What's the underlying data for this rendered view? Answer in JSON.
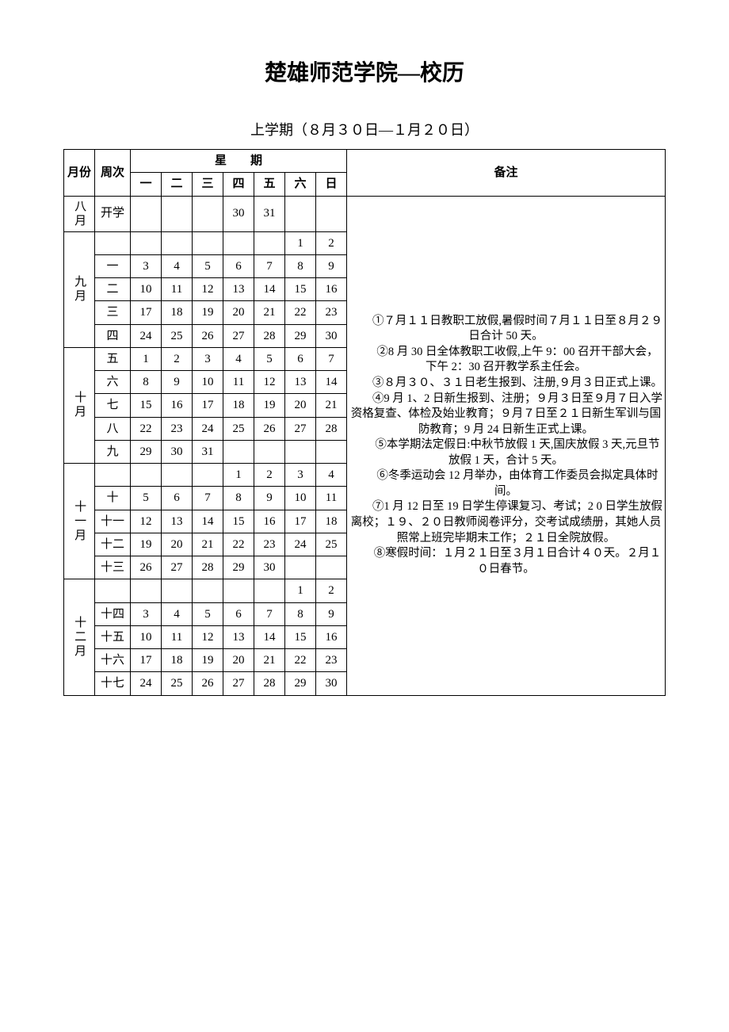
{
  "title": "楚雄师范学院—校历",
  "subtitle": "上学期（８月３０日—１月２０日）",
  "headers": {
    "month": "月份",
    "week": "周次",
    "weekday_group": "星　　期",
    "notes": "备注",
    "days": [
      "一",
      "二",
      "三",
      "四",
      "五",
      "六",
      "日"
    ]
  },
  "months": [
    {
      "label": "八月",
      "rows": [
        {
          "week": "开学",
          "d": [
            "",
            "",
            "",
            "30",
            "31",
            "",
            ""
          ]
        }
      ]
    },
    {
      "label": "九月",
      "rows": [
        {
          "week": "",
          "d": [
            "",
            "",
            "",
            "",
            "",
            "1",
            "2"
          ]
        },
        {
          "week": "一",
          "d": [
            "3",
            "4",
            "5",
            "6",
            "7",
            "8",
            "9"
          ]
        },
        {
          "week": "二",
          "d": [
            "10",
            "11",
            "12",
            "13",
            "14",
            "15",
            "16"
          ]
        },
        {
          "week": "三",
          "d": [
            "17",
            "18",
            "19",
            "20",
            "21",
            "22",
            "23"
          ]
        },
        {
          "week": "四",
          "d": [
            "24",
            "25",
            "26",
            "27",
            "28",
            "29",
            "30"
          ]
        }
      ]
    },
    {
      "label": "十月",
      "rows": [
        {
          "week": "五",
          "d": [
            "1",
            "2",
            "3",
            "4",
            "5",
            "6",
            "7"
          ]
        },
        {
          "week": "六",
          "d": [
            "8",
            "9",
            "10",
            "11",
            "12",
            "13",
            "14"
          ]
        },
        {
          "week": "七",
          "d": [
            "15",
            "16",
            "17",
            "18",
            "19",
            "20",
            "21"
          ]
        },
        {
          "week": "八",
          "d": [
            "22",
            "23",
            "24",
            "25",
            "26",
            "27",
            "28"
          ]
        },
        {
          "week": "九",
          "d": [
            "29",
            "30",
            "31",
            "",
            "",
            "",
            ""
          ]
        }
      ]
    },
    {
      "label": "十一月",
      "rows": [
        {
          "week": "",
          "d": [
            "",
            "",
            "",
            "1",
            "2",
            "3",
            "4"
          ]
        },
        {
          "week": "十",
          "d": [
            "5",
            "6",
            "7",
            "8",
            "9",
            "10",
            "11"
          ]
        },
        {
          "week": "十一",
          "d": [
            "12",
            "13",
            "14",
            "15",
            "16",
            "17",
            "18"
          ]
        },
        {
          "week": "十二",
          "d": [
            "19",
            "20",
            "21",
            "22",
            "23",
            "24",
            "25"
          ]
        },
        {
          "week": "十三",
          "d": [
            "26",
            "27",
            "28",
            "29",
            "30",
            "",
            ""
          ]
        }
      ]
    },
    {
      "label": "十二月",
      "rows": [
        {
          "week": "",
          "d": [
            "",
            "",
            "",
            "",
            "",
            "1",
            "2"
          ]
        },
        {
          "week": "十四",
          "d": [
            "3",
            "4",
            "5",
            "6",
            "7",
            "8",
            "9"
          ]
        },
        {
          "week": "十五",
          "d": [
            "10",
            "11",
            "12",
            "13",
            "14",
            "15",
            "16"
          ]
        },
        {
          "week": "十六",
          "d": [
            "17",
            "18",
            "19",
            "20",
            "21",
            "22",
            "23"
          ]
        },
        {
          "week": "十七",
          "d": [
            "24",
            "25",
            "26",
            "27",
            "28",
            "29",
            "30"
          ]
        }
      ]
    }
  ],
  "notes": [
    "①７月１１日教职工放假,暑假时间７月１１日至８月２９日合计 50 天。",
    "②8 月 30 日全体教职工收假,上午 9：00 召开干部大会，下午 2：30 召开教学系主任会。",
    "③８月３０、３１日老生报到、注册,９月３日正式上课。",
    "④9 月 1、2 日新生报到、注册；９月３日至９月７日入学资格复查、体检及始业教育；９月７日至２１日新生军训与国防教育；9 月 24 日新生正式上课。",
    "⑤本学期法定假日:中秋节放假 1 天,国庆放假 3 天,元旦节放假 1 天，合计 5 天。",
    "⑥冬季运动会 12 月举办，由体育工作委员会拟定具体时间。",
    "⑦1 月 12 日至 19 日学生停课复习、考试；2 0 日学生放假离校；１９、２０日教师阅卷评分，交考试成绩册，其她人员照常上班完毕期末工作；２１日全院放假。",
    "⑧寒假时间：１月２１日至３月１日合计４０天。２月１０日春节。"
  ],
  "total_body_rows": 21
}
